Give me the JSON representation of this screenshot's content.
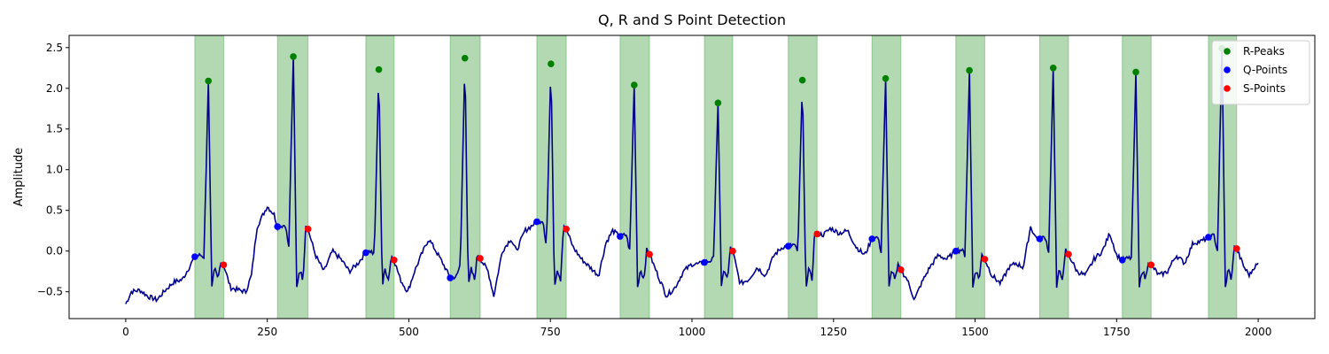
{
  "chart_data": {
    "type": "line",
    "title": "Q, R and S Point Detection",
    "xlabel": "",
    "ylabel": "Amplitude",
    "xlim": [
      -100,
      2100
    ],
    "ylim": [
      -0.83,
      2.65
    ],
    "x_ticks": [
      0,
      250,
      500,
      750,
      1000,
      1250,
      1500,
      1750,
      2000
    ],
    "y_ticks": [
      -0.5,
      0.0,
      0.5,
      1.0,
      1.5,
      2.0,
      2.5
    ],
    "x_tick_labels": [
      "0",
      "250",
      "500",
      "750",
      "1000",
      "1250",
      "1500",
      "1750",
      "2000"
    ],
    "y_tick_labels": [
      "−0.5",
      "0.0",
      "0.5",
      "1.0",
      "1.5",
      "2.0",
      "2.5"
    ],
    "grid": false,
    "legend_position": "top-right",
    "colors": {
      "signal": "#00008b",
      "r_peaks": "#008000",
      "q_points": "#0000ff",
      "s_points": "#ff0000",
      "qrs_region": "#008000"
    },
    "series": [
      {
        "name": "R-Peaks",
        "x": [
          146,
          296,
          447,
          599,
          751,
          898,
          1046,
          1195,
          1342,
          1490,
          1638,
          1784,
          1936
        ],
        "y": [
          2.09,
          2.39,
          2.23,
          2.37,
          2.3,
          2.04,
          1.82,
          2.1,
          2.12,
          2.22,
          2.25,
          2.2,
          2.49
        ]
      },
      {
        "name": "Q-Points",
        "x": [
          122,
          268,
          424,
          573,
          726,
          873,
          1022,
          1170,
          1318,
          1466,
          1614,
          1760,
          1912
        ],
        "y": [
          -0.07,
          0.3,
          -0.02,
          -0.33,
          0.36,
          0.18,
          -0.14,
          0.06,
          0.15,
          0.0,
          0.15,
          -0.11,
          0.17
        ]
      },
      {
        "name": "S-Points",
        "x": [
          173,
          322,
          474,
          626,
          778,
          925,
          1072,
          1221,
          1369,
          1517,
          1665,
          1811,
          1962
        ],
        "y": [
          -0.17,
          0.27,
          -0.11,
          -0.09,
          0.27,
          -0.04,
          0.0,
          0.21,
          -0.23,
          -0.1,
          -0.04,
          -0.17,
          0.03
        ]
      }
    ],
    "qrs_regions": [
      [
        122,
        173
      ],
      [
        268,
        322
      ],
      [
        424,
        474
      ],
      [
        573,
        626
      ],
      [
        726,
        778
      ],
      [
        873,
        925
      ],
      [
        1022,
        1072
      ],
      [
        1170,
        1221
      ],
      [
        1318,
        1369
      ],
      [
        1466,
        1517
      ],
      [
        1614,
        1665
      ],
      [
        1760,
        1811
      ],
      [
        1912,
        1962
      ]
    ],
    "signal": {
      "x_start": 0,
      "x_end": 2000,
      "baseline_knots": [
        [
          0,
          -0.65
        ],
        [
          10,
          -0.5
        ],
        [
          25,
          -0.48
        ],
        [
          40,
          -0.56
        ],
        [
          55,
          -0.6
        ],
        [
          70,
          -0.48
        ],
        [
          85,
          -0.38
        ],
        [
          100,
          -0.35
        ],
        [
          112,
          -0.2
        ],
        [
          122,
          -0.07
        ],
        [
          173,
          -0.17
        ],
        [
          185,
          -0.45
        ],
        [
          200,
          -0.48
        ],
        [
          212,
          -0.5
        ],
        [
          222,
          -0.3
        ],
        [
          232,
          0.3
        ],
        [
          250,
          0.55
        ],
        [
          262,
          0.45
        ],
        [
          268,
          0.3
        ],
        [
          322,
          0.27
        ],
        [
          335,
          -0.05
        ],
        [
          350,
          -0.25
        ],
        [
          365,
          0.0
        ],
        [
          380,
          -0.1
        ],
        [
          395,
          -0.25
        ],
        [
          410,
          -0.15
        ],
        [
          424,
          -0.02
        ],
        [
          474,
          -0.11
        ],
        [
          485,
          -0.35
        ],
        [
          498,
          -0.5
        ],
        [
          510,
          -0.25
        ],
        [
          522,
          -0.05
        ],
        [
          535,
          0.15
        ],
        [
          548,
          0.0
        ],
        [
          560,
          -0.15
        ],
        [
          573,
          -0.33
        ],
        [
          626,
          -0.09
        ],
        [
          640,
          -0.25
        ],
        [
          650,
          -0.55
        ],
        [
          665,
          0.0
        ],
        [
          680,
          0.15
        ],
        [
          690,
          0.0
        ],
        [
          705,
          0.25
        ],
        [
          715,
          0.3
        ],
        [
          726,
          0.36
        ],
        [
          778,
          0.27
        ],
        [
          790,
          0.05
        ],
        [
          805,
          -0.1
        ],
        [
          820,
          -0.2
        ],
        [
          835,
          -0.3
        ],
        [
          848,
          0.1
        ],
        [
          860,
          0.25
        ],
        [
          873,
          0.18
        ],
        [
          925,
          -0.04
        ],
        [
          940,
          -0.3
        ],
        [
          955,
          -0.55
        ],
        [
          970,
          -0.45
        ],
        [
          985,
          -0.25
        ],
        [
          1000,
          -0.16
        ],
        [
          1012,
          -0.16
        ],
        [
          1022,
          -0.14
        ],
        [
          1072,
          0.0
        ],
        [
          1085,
          -0.4
        ],
        [
          1100,
          -0.35
        ],
        [
          1115,
          -0.2
        ],
        [
          1130,
          -0.3
        ],
        [
          1145,
          -0.05
        ],
        [
          1160,
          0.05
        ],
        [
          1170,
          0.06
        ],
        [
          1221,
          0.21
        ],
        [
          1232,
          0.2
        ],
        [
          1245,
          0.28
        ],
        [
          1260,
          0.22
        ],
        [
          1275,
          0.25
        ],
        [
          1290,
          0.05
        ],
        [
          1305,
          -0.05
        ],
        [
          1318,
          0.15
        ],
        [
          1369,
          -0.23
        ],
        [
          1380,
          -0.35
        ],
        [
          1393,
          -0.6
        ],
        [
          1405,
          -0.4
        ],
        [
          1420,
          -0.2
        ],
        [
          1435,
          -0.05
        ],
        [
          1450,
          -0.1
        ],
        [
          1466,
          0.0
        ],
        [
          1517,
          -0.1
        ],
        [
          1530,
          -0.3
        ],
        [
          1545,
          -0.4
        ],
        [
          1560,
          -0.2
        ],
        [
          1572,
          -0.15
        ],
        [
          1585,
          -0.2
        ],
        [
          1598,
          0.3
        ],
        [
          1606,
          0.18
        ],
        [
          1614,
          0.15
        ],
        [
          1665,
          -0.04
        ],
        [
          1680,
          -0.25
        ],
        [
          1695,
          -0.3
        ],
        [
          1710,
          -0.1
        ],
        [
          1725,
          0.0
        ],
        [
          1738,
          0.22
        ],
        [
          1750,
          -0.05
        ],
        [
          1760,
          -0.11
        ],
        [
          1811,
          -0.17
        ],
        [
          1825,
          -0.3
        ],
        [
          1840,
          -0.25
        ],
        [
          1855,
          -0.05
        ],
        [
          1870,
          -0.15
        ],
        [
          1885,
          0.1
        ],
        [
          1900,
          0.12
        ],
        [
          1912,
          0.17
        ],
        [
          1962,
          0.03
        ],
        [
          1975,
          -0.2
        ],
        [
          1985,
          -0.3
        ],
        [
          1992,
          -0.2
        ],
        [
          2000,
          -0.16
        ]
      ]
    }
  }
}
